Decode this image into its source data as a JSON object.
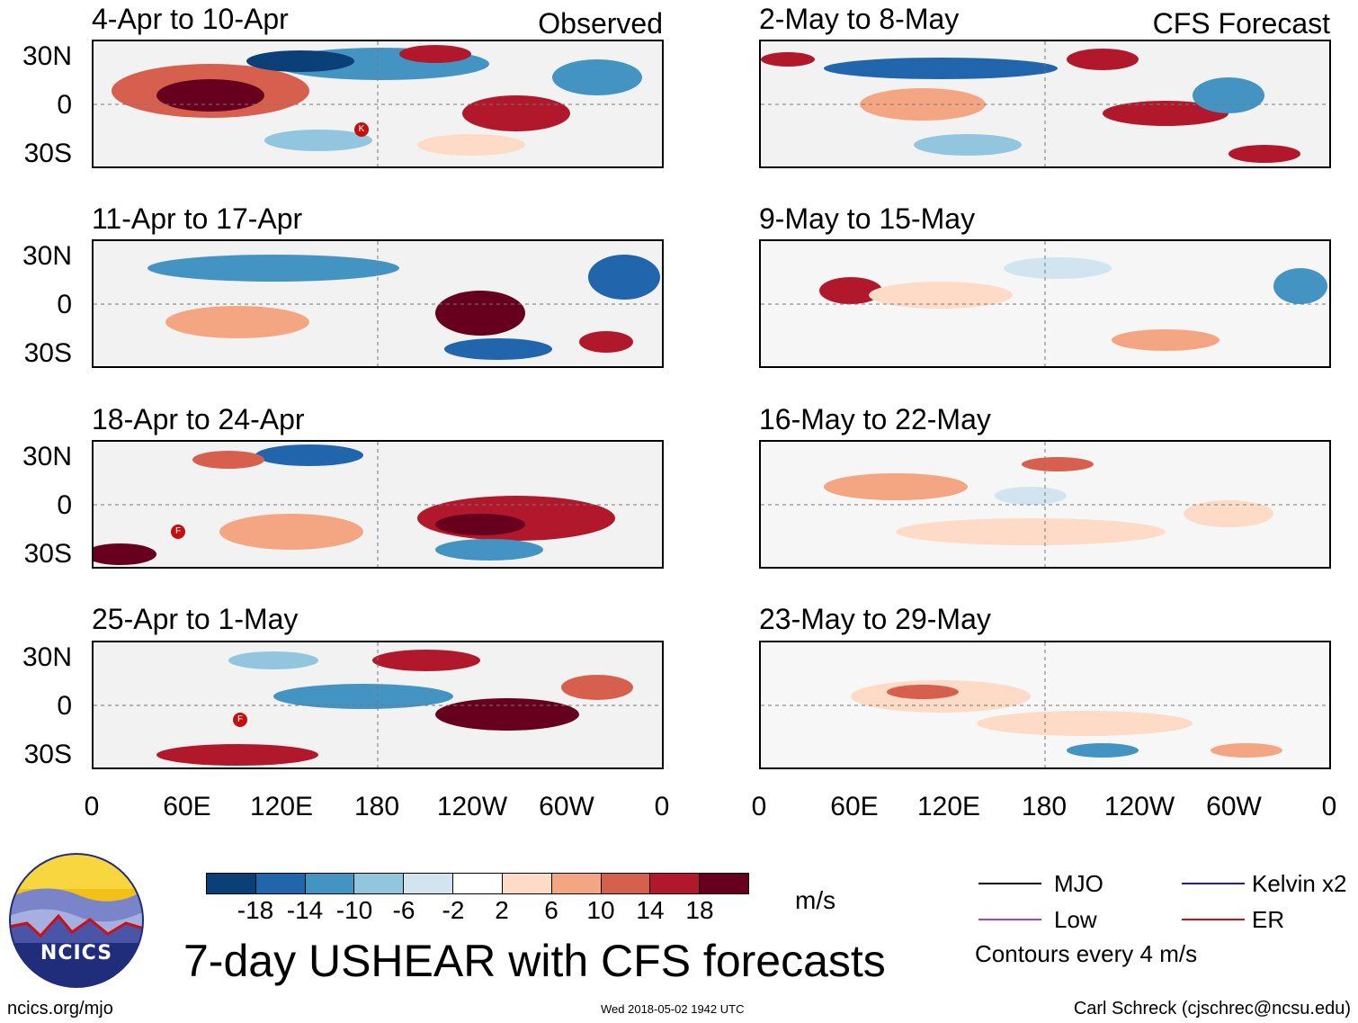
{
  "header": {
    "observed_label": "Observed",
    "forecast_label": "CFS Forecast"
  },
  "panels": {
    "obs": [
      {
        "title": "4-Apr to 10-Apr"
      },
      {
        "title": "11-Apr to 17-Apr"
      },
      {
        "title": "18-Apr to 24-Apr"
      },
      {
        "title": "25-Apr to 1-May"
      }
    ],
    "fcst": [
      {
        "title": "2-May to 8-May"
      },
      {
        "title": "9-May to 15-May"
      },
      {
        "title": "16-May to 22-May"
      },
      {
        "title": "23-May to 29-May"
      }
    ]
  },
  "axes": {
    "lat_labels": [
      "30N",
      "0",
      "30S"
    ],
    "lon_labels": [
      "0",
      "60E",
      "120E",
      "180",
      "120W",
      "60W",
      "0"
    ]
  },
  "storm_markers": {
    "p0": "K",
    "p2": "F",
    "p3": "F"
  },
  "colorbar": {
    "labels": [
      "-18",
      "-14",
      "-10",
      "-6",
      "-2",
      "2",
      "6",
      "10",
      "14",
      "18"
    ],
    "colors": [
      "#0b3f77",
      "#2166ac",
      "#4393c3",
      "#92c5de",
      "#d1e5f0",
      "#ffffff",
      "#fddbc7",
      "#f4a582",
      "#d6604d",
      "#b2182b",
      "#67001f"
    ],
    "units": "m/s"
  },
  "legend": {
    "items": [
      {
        "label": "MJO",
        "color": "#000000"
      },
      {
        "label": "Kelvin x2",
        "color": "#1a1acc"
      },
      {
        "label": "Low",
        "color": "#a040e0"
      },
      {
        "label": "ER",
        "color": "#d01010"
      }
    ],
    "contour_note": "Contours every 4 m/s"
  },
  "logo": {
    "text": "NCICS"
  },
  "title": "7-day USHEAR with CFS forecasts",
  "footer": {
    "url": "ncics.org/mjo",
    "timestamp": "Wed 2018-05-02 1942 UTC",
    "credit": "Carl Schreck (cjschrec@ncsu.edu)"
  }
}
